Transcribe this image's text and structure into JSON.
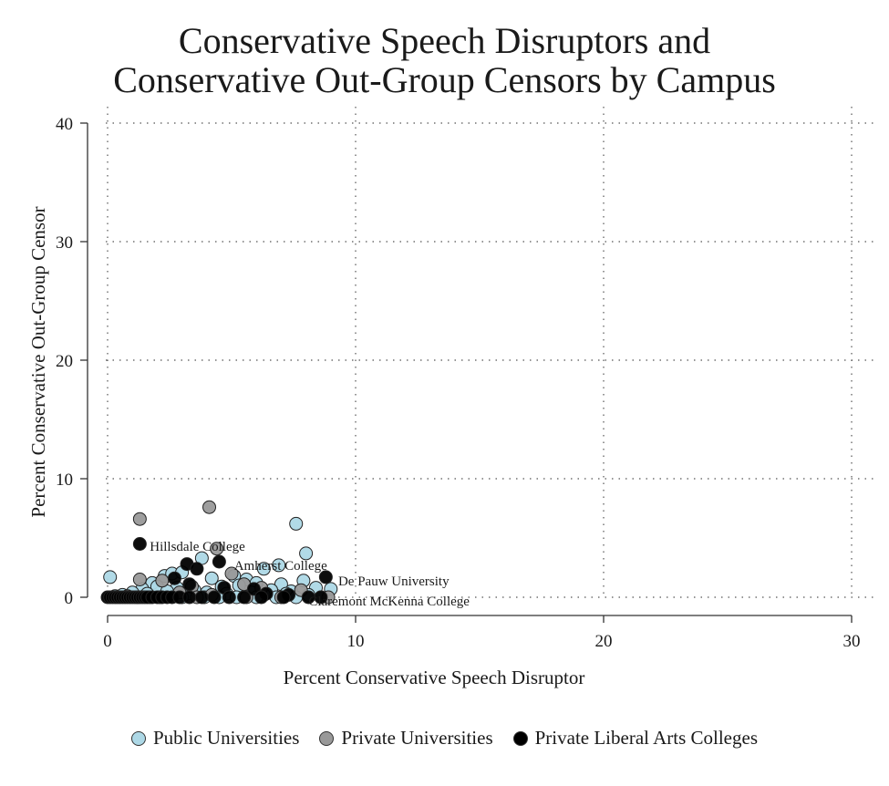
{
  "chart_data": {
    "type": "scatter",
    "title_lines": [
      "Conservative Speech Disruptors and",
      "Conservative Out-Group Censors by Campus"
    ],
    "xlabel": "Percent Conservative Speech Disruptor",
    "ylabel": "Percent Conservative Out-Group Censor",
    "xlim": [
      0,
      30
    ],
    "ylim": [
      0,
      40
    ],
    "xticks": [
      0,
      10,
      20,
      30
    ],
    "yticks": [
      0,
      10,
      20,
      30,
      40
    ],
    "grid": "dotted",
    "legend_position": "bottom",
    "series": [
      {
        "name": "Public Universities",
        "color": "#add8e6",
        "points": [
          [
            0.1,
            1.7
          ],
          [
            7.6,
            6.2
          ],
          [
            8.0,
            3.7
          ],
          [
            3.8,
            3.3
          ],
          [
            6.9,
            2.7
          ],
          [
            6.3,
            2.4
          ],
          [
            2.3,
            1.8
          ],
          [
            2.6,
            2.0
          ],
          [
            3.0,
            2.1
          ],
          [
            1.8,
            1.2
          ],
          [
            2.0,
            0.9
          ],
          [
            1.4,
            0.7
          ],
          [
            4.2,
            1.6
          ],
          [
            5.1,
            1.8
          ],
          [
            5.6,
            1.5
          ],
          [
            6.0,
            1.2
          ],
          [
            7.0,
            1.1
          ],
          [
            7.9,
            1.4
          ],
          [
            8.4,
            0.8
          ],
          [
            9.0,
            0.7
          ],
          [
            2.8,
            0.8
          ],
          [
            3.5,
            0.6
          ],
          [
            4.6,
            0.9
          ],
          [
            5.3,
            1.0
          ],
          [
            6.6,
            0.6
          ],
          [
            7.4,
            0.5
          ],
          [
            1.0,
            0.4
          ],
          [
            0.6,
            0.2
          ],
          [
            1.6,
            0.3
          ],
          [
            2.4,
            0.5
          ],
          [
            3.2,
            0.3
          ],
          [
            4.0,
            0.4
          ],
          [
            4.8,
            0.3
          ],
          [
            5.8,
            0.4
          ],
          [
            6.3,
            0.2
          ],
          [
            7.2,
            0.3
          ],
          [
            8.1,
            0.2
          ],
          [
            0.3,
            0.1
          ],
          [
            1.2,
            0.0
          ],
          [
            2.1,
            0.0
          ],
          [
            3.0,
            0.0
          ],
          [
            3.9,
            0.0
          ],
          [
            4.5,
            0.0
          ],
          [
            5.2,
            0.0
          ],
          [
            6.0,
            0.0
          ],
          [
            6.8,
            0.0
          ],
          [
            7.6,
            0.0
          ],
          [
            8.6,
            0.0
          ]
        ]
      },
      {
        "name": "Private Universities",
        "color": "#999999",
        "points": [
          [
            1.3,
            6.6
          ],
          [
            4.1,
            7.6
          ],
          [
            4.4,
            4.1
          ],
          [
            1.3,
            1.5
          ],
          [
            2.2,
            1.4
          ],
          [
            5.0,
            2.0
          ],
          [
            5.5,
            1.1
          ],
          [
            3.4,
            0.9
          ],
          [
            6.2,
            0.8
          ],
          [
            7.8,
            0.6
          ],
          [
            2.9,
            0.4
          ],
          [
            4.2,
            0.2
          ],
          [
            0.8,
            0.1
          ],
          [
            5.6,
            0.0
          ],
          [
            7.0,
            0.0
          ],
          [
            8.9,
            0.0
          ],
          [
            1.7,
            0.0
          ],
          [
            3.6,
            0.0
          ]
        ]
      },
      {
        "name": "Private Liberal Arts Colleges",
        "color": "#000000",
        "points": [
          [
            1.3,
            4.5
          ],
          [
            4.5,
            3.0
          ],
          [
            3.2,
            2.8
          ],
          [
            3.6,
            2.4
          ],
          [
            2.7,
            1.6
          ],
          [
            8.8,
            1.7
          ],
          [
            3.3,
            1.1
          ],
          [
            4.7,
            0.8
          ],
          [
            5.9,
            0.7
          ],
          [
            6.4,
            0.3
          ],
          [
            7.3,
            0.2
          ],
          [
            8.6,
            0.0
          ],
          [
            0.0,
            0.0
          ],
          [
            0.1,
            0.0
          ],
          [
            0.2,
            0.0
          ],
          [
            0.3,
            0.0
          ],
          [
            0.4,
            0.0
          ],
          [
            0.5,
            0.0
          ],
          [
            0.6,
            0.0
          ],
          [
            0.7,
            0.0
          ],
          [
            0.8,
            0.0
          ],
          [
            0.9,
            0.0
          ],
          [
            1.0,
            0.0
          ],
          [
            1.1,
            0.0
          ],
          [
            1.2,
            0.0
          ],
          [
            1.3,
            0.0
          ],
          [
            1.4,
            0.0
          ],
          [
            1.5,
            0.0
          ],
          [
            1.6,
            0.0
          ],
          [
            1.8,
            0.0
          ],
          [
            2.0,
            0.0
          ],
          [
            2.2,
            0.0
          ],
          [
            2.4,
            0.0
          ],
          [
            2.6,
            0.0
          ],
          [
            2.9,
            0.0
          ],
          [
            3.3,
            0.0
          ],
          [
            3.8,
            0.0
          ],
          [
            4.3,
            0.0
          ],
          [
            4.9,
            0.0
          ],
          [
            5.5,
            0.0
          ],
          [
            6.2,
            0.0
          ],
          [
            7.1,
            0.0
          ],
          [
            8.1,
            0.0
          ]
        ]
      }
    ],
    "annotations": [
      {
        "text": "Hillsdale College",
        "x": 1.7,
        "y": 4.3
      },
      {
        "text": "Amherst College",
        "x": 5.1,
        "y": 2.7
      },
      {
        "text": "De Pauw University",
        "x": 9.3,
        "y": 1.4
      },
      {
        "text": "Claremont McKenna College",
        "x": 8.1,
        "y": -0.3
      }
    ]
  }
}
